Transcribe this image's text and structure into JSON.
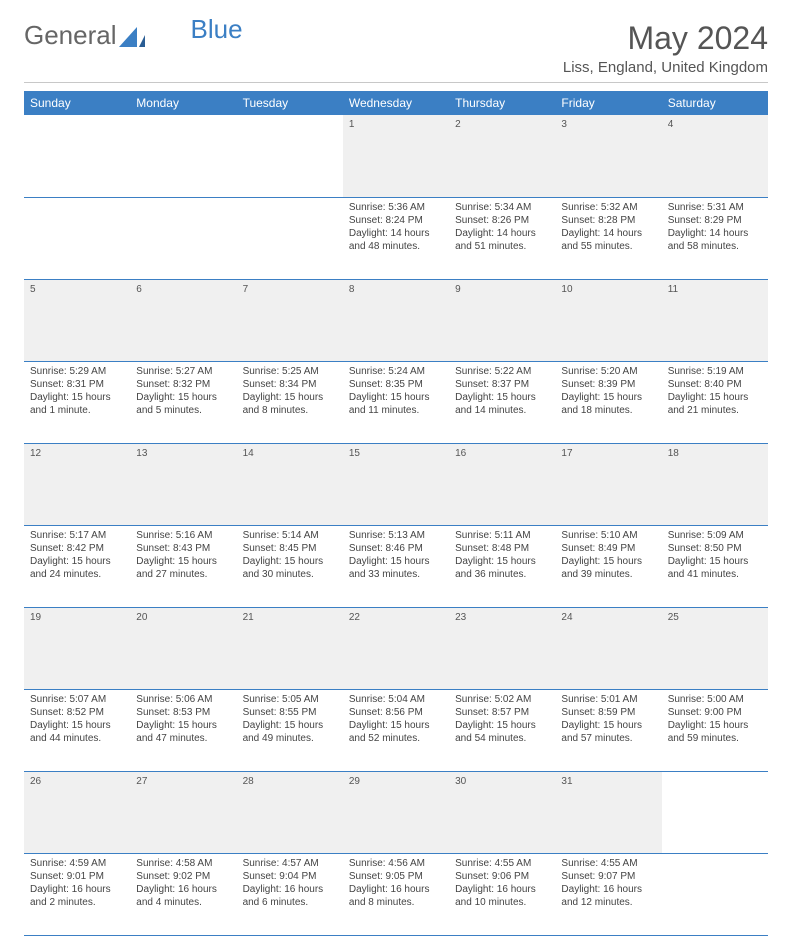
{
  "logo": {
    "text1": "General",
    "text2": "Blue"
  },
  "title": "May 2024",
  "location": "Liss, England, United Kingdom",
  "colors": {
    "header_bg": "#3b7fc4",
    "header_text": "#ffffff",
    "daynum_bg": "#f0f0f0",
    "row_divider": "#3b7fc4",
    "page_bg": "#ffffff",
    "text_color": "#444444"
  },
  "weekdays": [
    "Sunday",
    "Monday",
    "Tuesday",
    "Wednesday",
    "Thursday",
    "Friday",
    "Saturday"
  ],
  "weeks": [
    [
      null,
      null,
      null,
      {
        "n": "1",
        "sr": "5:36 AM",
        "ss": "8:24 PM",
        "dl": "14 hours and 48 minutes."
      },
      {
        "n": "2",
        "sr": "5:34 AM",
        "ss": "8:26 PM",
        "dl": "14 hours and 51 minutes."
      },
      {
        "n": "3",
        "sr": "5:32 AM",
        "ss": "8:28 PM",
        "dl": "14 hours and 55 minutes."
      },
      {
        "n": "4",
        "sr": "5:31 AM",
        "ss": "8:29 PM",
        "dl": "14 hours and 58 minutes."
      }
    ],
    [
      {
        "n": "5",
        "sr": "5:29 AM",
        "ss": "8:31 PM",
        "dl": "15 hours and 1 minute."
      },
      {
        "n": "6",
        "sr": "5:27 AM",
        "ss": "8:32 PM",
        "dl": "15 hours and 5 minutes."
      },
      {
        "n": "7",
        "sr": "5:25 AM",
        "ss": "8:34 PM",
        "dl": "15 hours and 8 minutes."
      },
      {
        "n": "8",
        "sr": "5:24 AM",
        "ss": "8:35 PM",
        "dl": "15 hours and 11 minutes."
      },
      {
        "n": "9",
        "sr": "5:22 AM",
        "ss": "8:37 PM",
        "dl": "15 hours and 14 minutes."
      },
      {
        "n": "10",
        "sr": "5:20 AM",
        "ss": "8:39 PM",
        "dl": "15 hours and 18 minutes."
      },
      {
        "n": "11",
        "sr": "5:19 AM",
        "ss": "8:40 PM",
        "dl": "15 hours and 21 minutes."
      }
    ],
    [
      {
        "n": "12",
        "sr": "5:17 AM",
        "ss": "8:42 PM",
        "dl": "15 hours and 24 minutes."
      },
      {
        "n": "13",
        "sr": "5:16 AM",
        "ss": "8:43 PM",
        "dl": "15 hours and 27 minutes."
      },
      {
        "n": "14",
        "sr": "5:14 AM",
        "ss": "8:45 PM",
        "dl": "15 hours and 30 minutes."
      },
      {
        "n": "15",
        "sr": "5:13 AM",
        "ss": "8:46 PM",
        "dl": "15 hours and 33 minutes."
      },
      {
        "n": "16",
        "sr": "5:11 AM",
        "ss": "8:48 PM",
        "dl": "15 hours and 36 minutes."
      },
      {
        "n": "17",
        "sr": "5:10 AM",
        "ss": "8:49 PM",
        "dl": "15 hours and 39 minutes."
      },
      {
        "n": "18",
        "sr": "5:09 AM",
        "ss": "8:50 PM",
        "dl": "15 hours and 41 minutes."
      }
    ],
    [
      {
        "n": "19",
        "sr": "5:07 AM",
        "ss": "8:52 PM",
        "dl": "15 hours and 44 minutes."
      },
      {
        "n": "20",
        "sr": "5:06 AM",
        "ss": "8:53 PM",
        "dl": "15 hours and 47 minutes."
      },
      {
        "n": "21",
        "sr": "5:05 AM",
        "ss": "8:55 PM",
        "dl": "15 hours and 49 minutes."
      },
      {
        "n": "22",
        "sr": "5:04 AM",
        "ss": "8:56 PM",
        "dl": "15 hours and 52 minutes."
      },
      {
        "n": "23",
        "sr": "5:02 AM",
        "ss": "8:57 PM",
        "dl": "15 hours and 54 minutes."
      },
      {
        "n": "24",
        "sr": "5:01 AM",
        "ss": "8:59 PM",
        "dl": "15 hours and 57 minutes."
      },
      {
        "n": "25",
        "sr": "5:00 AM",
        "ss": "9:00 PM",
        "dl": "15 hours and 59 minutes."
      }
    ],
    [
      {
        "n": "26",
        "sr": "4:59 AM",
        "ss": "9:01 PM",
        "dl": "16 hours and 2 minutes."
      },
      {
        "n": "27",
        "sr": "4:58 AM",
        "ss": "9:02 PM",
        "dl": "16 hours and 4 minutes."
      },
      {
        "n": "28",
        "sr": "4:57 AM",
        "ss": "9:04 PM",
        "dl": "16 hours and 6 minutes."
      },
      {
        "n": "29",
        "sr": "4:56 AM",
        "ss": "9:05 PM",
        "dl": "16 hours and 8 minutes."
      },
      {
        "n": "30",
        "sr": "4:55 AM",
        "ss": "9:06 PM",
        "dl": "16 hours and 10 minutes."
      },
      {
        "n": "31",
        "sr": "4:55 AM",
        "ss": "9:07 PM",
        "dl": "16 hours and 12 minutes."
      },
      null
    ]
  ],
  "labels": {
    "sunrise": "Sunrise:",
    "sunset": "Sunset:",
    "daylight": "Daylight:"
  }
}
